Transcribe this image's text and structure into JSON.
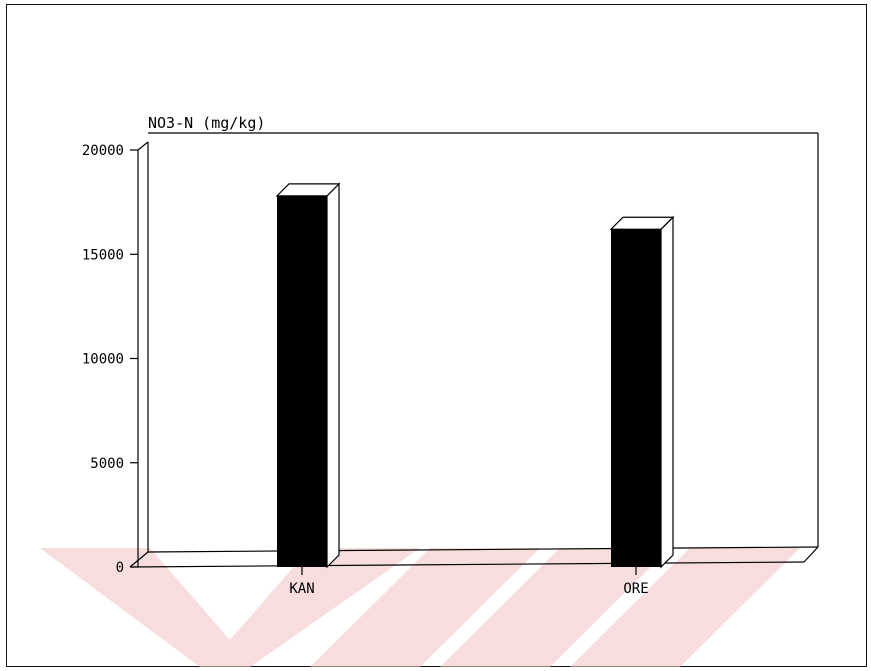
{
  "chart_data": {
    "type": "bar",
    "ylabel": "NO3-N (mg/kg)",
    "categories": [
      "KAN",
      "ORE"
    ],
    "values": [
      17800,
      16200
    ],
    "ylim": [
      0,
      20000
    ],
    "yticks": [
      "0",
      "5000",
      "10000",
      "15000",
      "20000"
    ],
    "grid": false,
    "bar_color": "#000000",
    "watermark_color": "#f4c7c9"
  }
}
